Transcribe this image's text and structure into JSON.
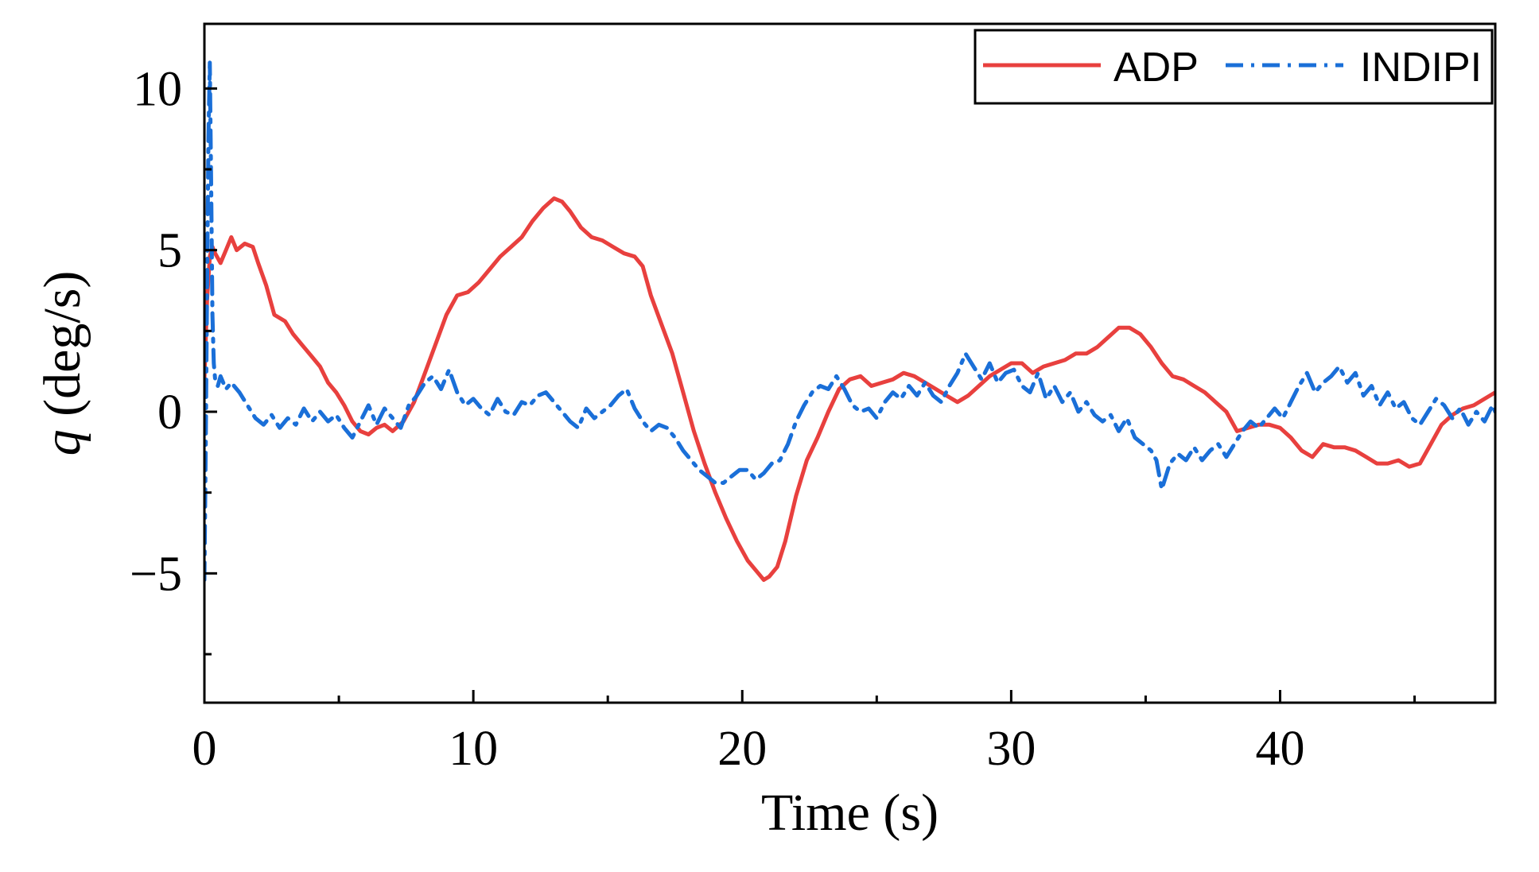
{
  "chart_data": {
    "type": "line",
    "title": "",
    "xlabel": "Time (s)",
    "ylabel_symbol": "q",
    "ylabel_unit": "(deg/s)",
    "xlim": [
      0,
      48
    ],
    "ylim": [
      -9,
      12
    ],
    "x_ticks": [
      0,
      10,
      20,
      30,
      40
    ],
    "x_minor_ticks": [
      5,
      15,
      25,
      35,
      45
    ],
    "x_tick_labels": [
      "0",
      "10",
      "20",
      "30",
      "40"
    ],
    "y_ticks": [
      10,
      5,
      0,
      -5
    ],
    "y_minor_ticks": [
      7.5,
      2.5,
      -2.5,
      -7.5
    ],
    "y_tick_labels": [
      "10",
      "5",
      "0",
      "−5"
    ],
    "grid": false,
    "legend_position": "top-right",
    "series": [
      {
        "name": "ADP",
        "color": "#e8403e",
        "style": "solid",
        "x": [
          0,
          0.1,
          0.2,
          0.3,
          0.4,
          0.6,
          0.8,
          1.0,
          1.2,
          1.5,
          1.8,
          2.0,
          2.3,
          2.6,
          3.0,
          3.3,
          3.6,
          4.0,
          4.3,
          4.6,
          4.9,
          5.2,
          5.5,
          5.8,
          6.1,
          6.4,
          6.7,
          7.0,
          7.4,
          7.8,
          8.2,
          8.6,
          9.0,
          9.4,
          9.8,
          10.2,
          10.6,
          11.0,
          11.4,
          11.8,
          12.2,
          12.6,
          13.0,
          13.3,
          13.6,
          14.0,
          14.4,
          14.8,
          15.2,
          15.6,
          16.0,
          16.3,
          16.6,
          17.0,
          17.4,
          17.8,
          18.2,
          18.6,
          19.0,
          19.4,
          19.8,
          20.2,
          20.6,
          20.8,
          21.0,
          21.3,
          21.6,
          22.0,
          22.4,
          22.8,
          23.2,
          23.6,
          24.0,
          24.4,
          24.8,
          25.2,
          25.6,
          26.0,
          26.4,
          26.8,
          27.2,
          27.6,
          28.0,
          28.4,
          28.8,
          29.2,
          29.6,
          30.0,
          30.4,
          30.8,
          31.2,
          31.6,
          32.0,
          32.4,
          32.8,
          33.2,
          33.6,
          34.0,
          34.4,
          34.8,
          35.2,
          35.6,
          36.0,
          36.4,
          36.8,
          37.2,
          37.6,
          38.0,
          38.4,
          38.8,
          39.2,
          39.6,
          40.0,
          40.4,
          40.8,
          41.2,
          41.6,
          42.0,
          42.4,
          42.8,
          43.2,
          43.6,
          44.0,
          44.4,
          44.8,
          45.2,
          45.6,
          46.0,
          46.4,
          46.8,
          47.2,
          47.6,
          48.0
        ],
        "y": [
          1.0,
          3.5,
          4.8,
          5.1,
          4.9,
          4.6,
          5.0,
          5.4,
          5.0,
          5.2,
          5.1,
          4.6,
          3.9,
          3.0,
          2.8,
          2.4,
          2.1,
          1.7,
          1.4,
          0.9,
          0.6,
          0.2,
          -0.3,
          -0.6,
          -0.7,
          -0.5,
          -0.4,
          -0.6,
          -0.3,
          0.3,
          1.2,
          2.1,
          3.0,
          3.6,
          3.7,
          4.0,
          4.4,
          4.8,
          5.1,
          5.4,
          5.9,
          6.3,
          6.6,
          6.5,
          6.2,
          5.7,
          5.4,
          5.3,
          5.1,
          4.9,
          4.8,
          4.5,
          3.6,
          2.7,
          1.8,
          0.6,
          -0.6,
          -1.6,
          -2.5,
          -3.3,
          -4.0,
          -4.6,
          -5.0,
          -5.2,
          -5.1,
          -4.8,
          -4.0,
          -2.6,
          -1.5,
          -0.8,
          0.0,
          0.7,
          1.0,
          1.1,
          0.8,
          0.9,
          1.0,
          1.2,
          1.1,
          0.9,
          0.7,
          0.5,
          0.3,
          0.5,
          0.8,
          1.1,
          1.3,
          1.5,
          1.5,
          1.2,
          1.4,
          1.5,
          1.6,
          1.8,
          1.8,
          2.0,
          2.3,
          2.6,
          2.6,
          2.4,
          2.0,
          1.5,
          1.1,
          1.0,
          0.8,
          0.6,
          0.3,
          0.0,
          -0.6,
          -0.5,
          -0.4,
          -0.4,
          -0.5,
          -0.8,
          -1.2,
          -1.4,
          -1.0,
          -1.1,
          -1.1,
          -1.2,
          -1.4,
          -1.6,
          -1.6,
          -1.5,
          -1.7,
          -1.6,
          -1.0,
          -0.4,
          -0.1,
          0.1,
          0.2,
          0.4,
          0.6
        ]
      },
      {
        "name": "INDIPI",
        "color": "#1a6fd8",
        "style": "dashdot",
        "x": [
          0,
          0.05,
          0.1,
          0.15,
          0.2,
          0.25,
          0.3,
          0.35,
          0.4,
          0.5,
          0.6,
          0.8,
          1.0,
          1.3,
          1.6,
          1.9,
          2.2,
          2.5,
          2.8,
          3.1,
          3.4,
          3.7,
          4.0,
          4.3,
          4.6,
          4.9,
          5.2,
          5.5,
          5.8,
          6.1,
          6.4,
          6.7,
          7.0,
          7.3,
          7.6,
          7.9,
          8.2,
          8.5,
          8.8,
          9.1,
          9.4,
          9.7,
          10.0,
          10.3,
          10.6,
          10.9,
          11.2,
          11.5,
          11.8,
          12.1,
          12.4,
          12.7,
          13.0,
          13.3,
          13.6,
          13.9,
          14.2,
          14.5,
          14.8,
          15.1,
          15.4,
          15.7,
          16.0,
          16.3,
          16.6,
          16.9,
          17.2,
          17.5,
          17.8,
          18.1,
          18.4,
          18.7,
          19.0,
          19.3,
          19.6,
          19.9,
          20.2,
          20.5,
          20.8,
          21.1,
          21.4,
          21.7,
          22.0,
          22.3,
          22.6,
          22.9,
          23.2,
          23.5,
          23.8,
          24.1,
          24.4,
          24.7,
          25.0,
          25.3,
          25.6,
          25.9,
          26.2,
          26.5,
          26.8,
          27.1,
          27.4,
          27.7,
          28.0,
          28.3,
          28.6,
          28.9,
          29.2,
          29.5,
          29.8,
          30.1,
          30.4,
          30.7,
          31.0,
          31.3,
          31.6,
          31.9,
          32.2,
          32.5,
          32.8,
          33.1,
          33.4,
          33.7,
          34.0,
          34.3,
          34.6,
          34.9,
          35.2,
          35.4,
          35.6,
          35.9,
          36.2,
          36.5,
          36.8,
          37.1,
          37.4,
          37.7,
          38.0,
          38.3,
          38.6,
          38.9,
          39.2,
          39.5,
          39.8,
          40.1,
          40.4,
          40.7,
          41.0,
          41.3,
          41.6,
          41.9,
          42.2,
          42.5,
          42.8,
          43.1,
          43.4,
          43.7,
          44.0,
          44.3,
          44.6,
          44.9,
          45.2,
          45.5,
          45.8,
          46.1,
          46.4,
          46.7,
          47.0,
          47.3,
          47.6,
          47.9,
          48.0
        ],
        "y": [
          -5.2,
          -1.0,
          4.0,
          8.5,
          10.8,
          7.0,
          3.0,
          1.5,
          1.0,
          0.8,
          1.1,
          0.7,
          0.9,
          0.6,
          0.2,
          -0.2,
          -0.4,
          -0.1,
          -0.5,
          -0.2,
          -0.4,
          0.1,
          -0.3,
          0.0,
          -0.3,
          -0.1,
          -0.5,
          -0.8,
          -0.3,
          0.2,
          -0.4,
          0.1,
          -0.2,
          -0.5,
          0.2,
          0.5,
          0.9,
          1.1,
          0.7,
          1.3,
          0.6,
          0.2,
          0.4,
          0.1,
          -0.1,
          0.4,
          0.0,
          -0.1,
          0.3,
          0.2,
          0.5,
          0.6,
          0.3,
          0.0,
          -0.3,
          -0.5,
          0.1,
          -0.2,
          0.0,
          0.2,
          0.5,
          0.7,
          0.1,
          -0.3,
          -0.6,
          -0.4,
          -0.5,
          -0.8,
          -1.2,
          -1.5,
          -1.8,
          -2.0,
          -2.2,
          -2.2,
          -2.0,
          -1.8,
          -1.8,
          -2.1,
          -1.9,
          -1.6,
          -1.5,
          -1.0,
          -0.3,
          0.2,
          0.6,
          0.8,
          0.7,
          1.1,
          0.7,
          0.2,
          0.0,
          0.1,
          -0.2,
          0.3,
          0.6,
          0.4,
          0.8,
          0.5,
          0.9,
          0.5,
          0.3,
          0.8,
          1.2,
          1.8,
          1.4,
          1.0,
          1.5,
          0.9,
          1.2,
          1.3,
          0.8,
          0.6,
          1.2,
          0.4,
          0.8,
          0.3,
          0.6,
          0.0,
          0.3,
          -0.1,
          -0.3,
          -0.1,
          -0.6,
          -0.2,
          -0.8,
          -1.0,
          -1.2,
          -1.5,
          -2.4,
          -1.6,
          -1.3,
          -1.5,
          -1.1,
          -1.5,
          -1.2,
          -1.0,
          -1.4,
          -1.0,
          -0.6,
          -0.3,
          -0.5,
          -0.2,
          0.1,
          -0.2,
          0.3,
          0.8,
          1.2,
          0.6,
          0.9,
          1.1,
          1.4,
          0.9,
          1.2,
          0.5,
          0.8,
          0.2,
          0.6,
          0.1,
          0.3,
          -0.2,
          -0.4,
          0.0,
          0.4,
          0.2,
          -0.2,
          0.1,
          -0.4,
          0.0,
          -0.3,
          0.2,
          0.0
        ]
      }
    ]
  }
}
